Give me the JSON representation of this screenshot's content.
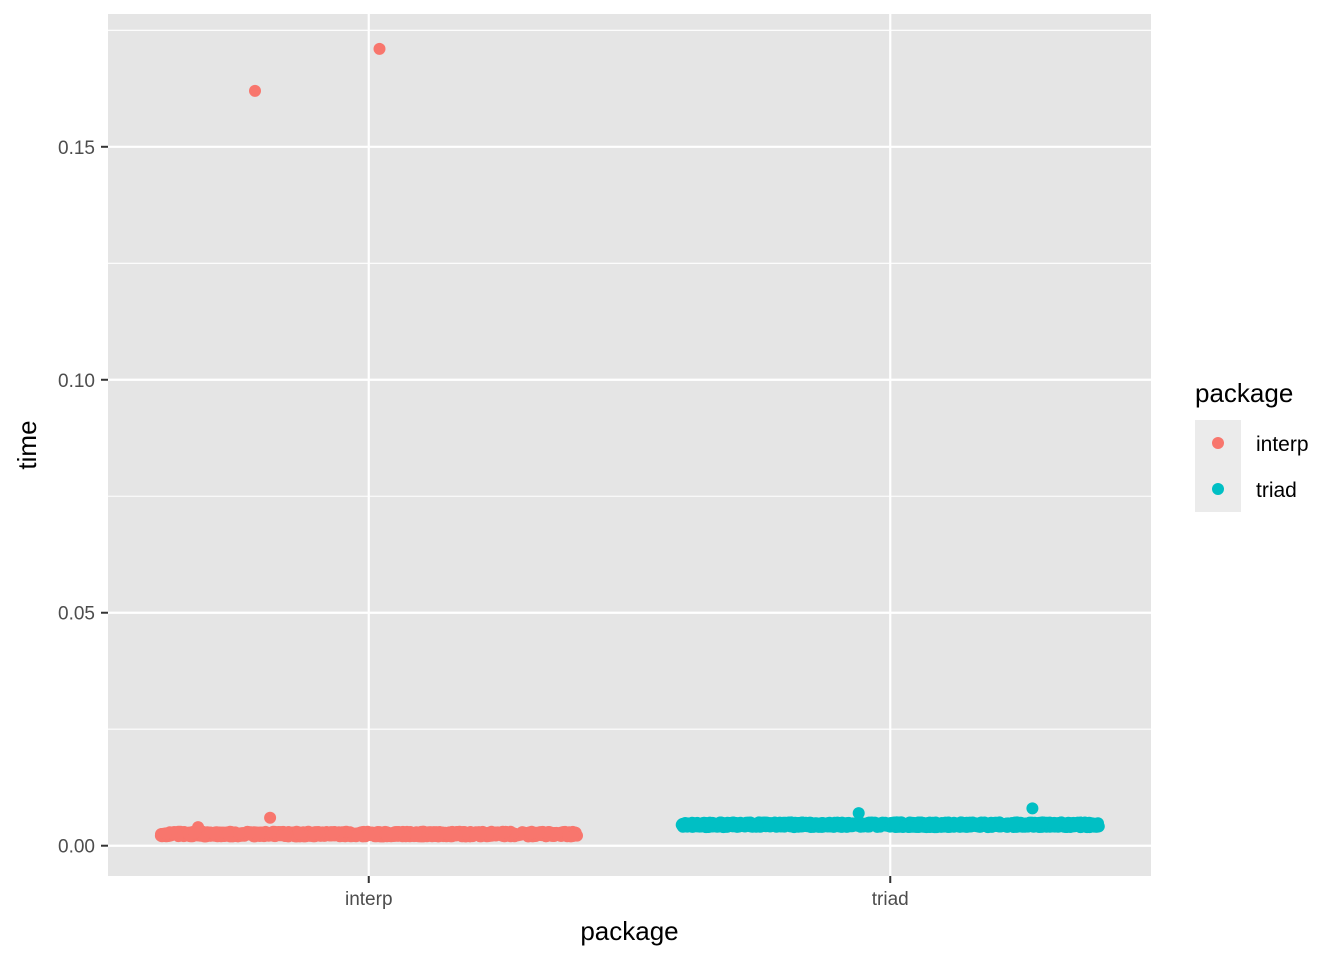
{
  "chart_data": {
    "type": "scatter",
    "xlabel": "package",
    "ylabel": "time",
    "categories": [
      "interp",
      "triad"
    ],
    "ylim": [
      -0.0065,
      0.1785
    ],
    "y_ticks": [
      0.0,
      0.05,
      0.1,
      0.15
    ],
    "y_tick_labels": [
      "0.00",
      "0.05",
      "0.10",
      "0.15"
    ],
    "grid": true,
    "background": "#e5e5e5",
    "jitter": true,
    "legend": {
      "title": "package",
      "placement": "right",
      "entries": [
        {
          "label": "interp",
          "color": "#f8766d"
        },
        {
          "label": "triad",
          "color": "#00bfc4"
        }
      ]
    },
    "series": [
      {
        "name": "interp",
        "color": "#f8766d",
        "bulk": {
          "n": 1000,
          "y_min": 0.002,
          "y_max": 0.003
        },
        "outliers": [
          {
            "x": "interp",
            "y": 0.171
          },
          {
            "x": "interp",
            "y": 0.162
          },
          {
            "x": "interp",
            "y": 0.006
          },
          {
            "x": "interp",
            "y": 0.004
          }
        ]
      },
      {
        "name": "triad",
        "color": "#00bfc4",
        "bulk": {
          "n": 1000,
          "y_min": 0.004,
          "y_max": 0.005
        },
        "outliers": [
          {
            "x": "triad",
            "y": 0.008
          },
          {
            "x": "triad",
            "y": 0.007
          }
        ]
      }
    ]
  }
}
